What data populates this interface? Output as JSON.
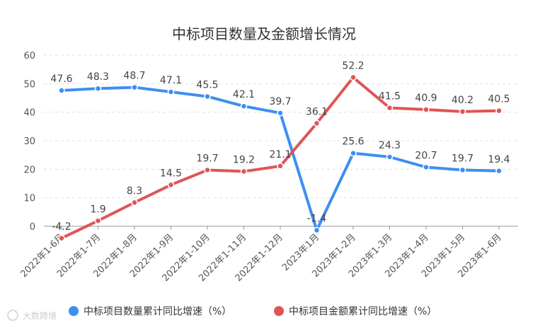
{
  "chart_data": {
    "type": "line",
    "title": "中标项目数量及金额增长情况",
    "xlabel": "",
    "ylabel": "",
    "ylim": [
      -5,
      60
    ],
    "yticks": [
      0,
      10,
      20,
      30,
      40,
      50,
      60
    ],
    "grid": true,
    "legend_position": "bottom",
    "categories": [
      "2022年1-6月",
      "2022年1-7月",
      "2022年1-8月",
      "2022年1-9月",
      "2022年1-10月",
      "2022年1-11月",
      "2022年1-12月",
      "2023年1月",
      "2023年1-2月",
      "2023年1-3月",
      "2023年1-4月",
      "2023年1-5月",
      "2023年1-6月"
    ],
    "series": [
      {
        "name": "中标项目数量累计同比增速（%）",
        "color": "#3d8ff0",
        "values": [
          47.6,
          48.3,
          48.7,
          47.1,
          45.5,
          42.1,
          39.7,
          -1.4,
          25.6,
          24.3,
          20.7,
          19.7,
          19.4
        ],
        "labels": [
          "47.6",
          "48.3",
          "48.7",
          "47.1",
          "45.5",
          "42.1",
          "39.7",
          "-1.4",
          "25.6",
          "24.3",
          "20.7",
          "19.7",
          "19.4"
        ]
      },
      {
        "name": "中标项目金额累计同比增速（%）",
        "color": "#de5654",
        "values": [
          -4.2,
          1.9,
          8.3,
          14.5,
          19.7,
          19.2,
          21.1,
          36.1,
          52.2,
          41.5,
          40.9,
          40.2,
          40.5
        ],
        "labels": [
          "-4.2",
          "1.9",
          "8.3",
          "14.5",
          "19.7",
          "19.2",
          "21.1",
          "36.1",
          "52.2",
          "41.5",
          "40.9",
          "40.2",
          "40.5"
        ]
      }
    ]
  },
  "watermark": {
    "text": "大数跨境",
    "icon": "logo-icon"
  }
}
